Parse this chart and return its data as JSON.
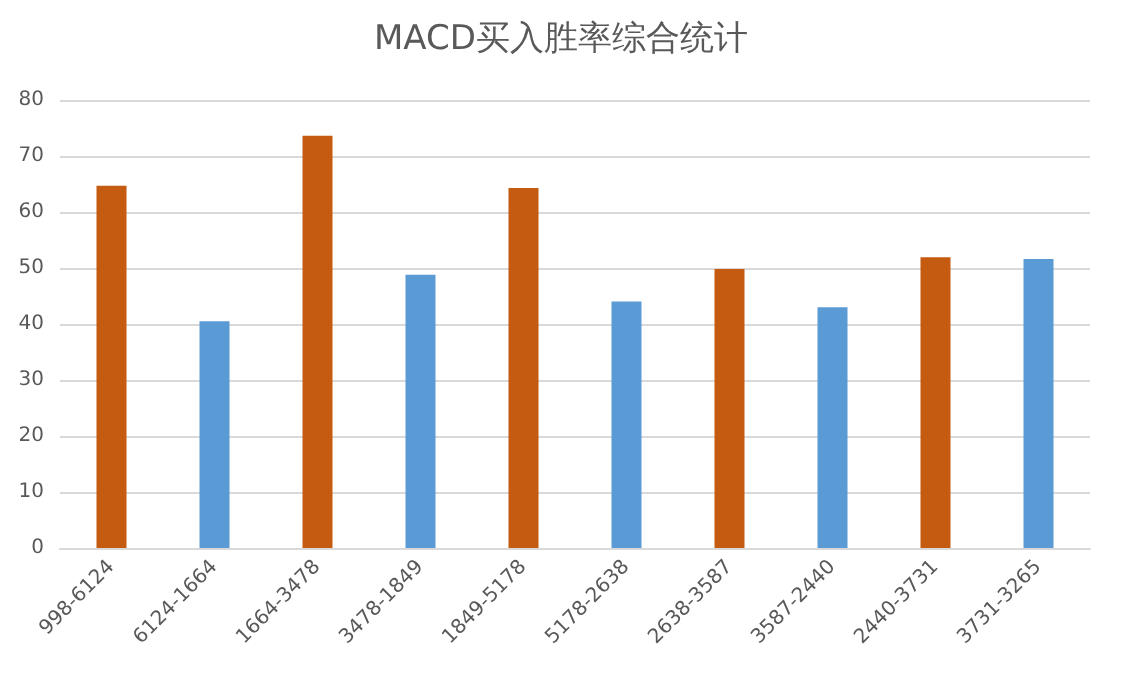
{
  "chart_data": {
    "type": "bar",
    "title": "MACD买入胜率综合统计",
    "categories": [
      "998-6124",
      "6124-1664",
      "1664-3478",
      "3478-1849",
      "1849-5178",
      "5178-2638",
      "2638-3587",
      "3587-2440",
      "2440-3731",
      "3731-3265"
    ],
    "values": [
      64.7,
      40.5,
      73.6,
      48.8,
      64.3,
      44.0,
      49.8,
      43.0,
      51.9,
      51.6
    ],
    "colors": [
      "#c55a11",
      "#5b9bd5",
      "#c55a11",
      "#5b9bd5",
      "#c55a11",
      "#5b9bd5",
      "#c55a11",
      "#5b9bd5",
      "#c55a11",
      "#5b9bd5"
    ],
    "ylim": [
      0,
      80
    ],
    "yticks": [
      0,
      10,
      20,
      30,
      40,
      50,
      60,
      70,
      80
    ],
    "grid": "y"
  }
}
